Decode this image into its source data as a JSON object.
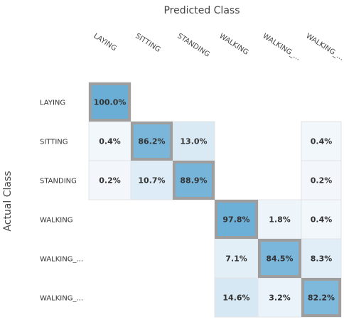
{
  "chart_data": {
    "type": "heatmap",
    "xlabel": "Predicted Class",
    "ylabel": "Actual Class",
    "x_categories": [
      "LAYING",
      "SITTING",
      "STANDING",
      "WALKING",
      "WALKING_...",
      "WALKING_..."
    ],
    "y_categories": [
      "LAYING",
      "SITTING",
      "STANDING",
      "WALKING",
      "WALKING_...",
      "WALKING_..."
    ],
    "value_unit": "%",
    "cells": [
      {
        "row": 0,
        "col": 0,
        "value": 100.0,
        "label": "100.0%"
      },
      {
        "row": 1,
        "col": 0,
        "value": 0.4,
        "label": "0.4%"
      },
      {
        "row": 1,
        "col": 1,
        "value": 86.2,
        "label": "86.2%"
      },
      {
        "row": 1,
        "col": 2,
        "value": 13.0,
        "label": "13.0%"
      },
      {
        "row": 1,
        "col": 5,
        "value": 0.4,
        "label": "0.4%"
      },
      {
        "row": 2,
        "col": 0,
        "value": 0.2,
        "label": "0.2%"
      },
      {
        "row": 2,
        "col": 1,
        "value": 10.7,
        "label": "10.7%"
      },
      {
        "row": 2,
        "col": 2,
        "value": 88.9,
        "label": "88.9%"
      },
      {
        "row": 2,
        "col": 5,
        "value": 0.2,
        "label": "0.2%"
      },
      {
        "row": 3,
        "col": 3,
        "value": 97.8,
        "label": "97.8%"
      },
      {
        "row": 3,
        "col": 4,
        "value": 1.8,
        "label": "1.8%"
      },
      {
        "row": 3,
        "col": 5,
        "value": 0.4,
        "label": "0.4%"
      },
      {
        "row": 4,
        "col": 3,
        "value": 7.1,
        "label": "7.1%"
      },
      {
        "row": 4,
        "col": 4,
        "value": 84.5,
        "label": "84.5%"
      },
      {
        "row": 4,
        "col": 5,
        "value": 8.3,
        "label": "8.3%"
      },
      {
        "row": 5,
        "col": 3,
        "value": 14.6,
        "label": "14.6%"
      },
      {
        "row": 5,
        "col": 4,
        "value": 3.2,
        "label": "3.2%"
      },
      {
        "row": 5,
        "col": 5,
        "value": 82.2,
        "label": "82.2%"
      }
    ],
    "colors": {
      "high": "#6aaed6",
      "low": "#f4f8fc",
      "diagonal_border": "#9e9e9e",
      "cell_border": "#e3e3e3"
    }
  }
}
